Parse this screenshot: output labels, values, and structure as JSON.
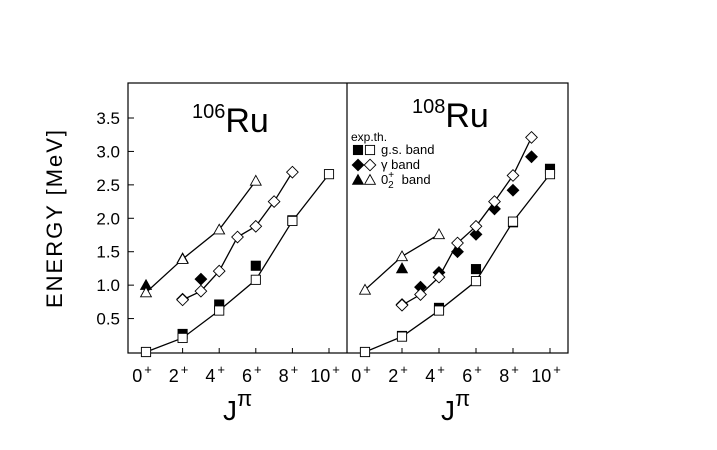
{
  "chart_data": [
    {
      "type": "scatter",
      "nucleus_mass": "106",
      "nucleus_symbol": "Ru",
      "ylabel": "ENERGY [MeV]",
      "xlabel_base": "J",
      "xlabel_sup": "π",
      "ylim": [
        0,
        3.5
      ],
      "xlim": [
        -1,
        11
      ],
      "x_ticks": [
        {
          "x": 0,
          "label": "0",
          "sup": "+"
        },
        {
          "x": 2,
          "label": "2",
          "sup": "+"
        },
        {
          "x": 4,
          "label": "4",
          "sup": "+"
        },
        {
          "x": 6,
          "label": "6",
          "sup": "+"
        },
        {
          "x": 8,
          "label": "8",
          "sup": "+"
        },
        {
          "x": 10,
          "label": "10",
          "sup": "+"
        }
      ],
      "y_ticks": [
        "0.5",
        "1.0",
        "1.5",
        "2.0",
        "2.5",
        "3.0",
        "3.5"
      ],
      "series": [
        {
          "band": "gs",
          "kind": "exp",
          "marker": "square-filled",
          "x": [
            0,
            2,
            4,
            6,
            8
          ],
          "y": [
            0.0,
            0.27,
            0.71,
            1.29,
            1.97
          ]
        },
        {
          "band": "gs",
          "kind": "th",
          "marker": "square-open",
          "line": true,
          "x": [
            0,
            2,
            4,
            6,
            8,
            10
          ],
          "y": [
            0.0,
            0.21,
            0.62,
            1.08,
            1.96,
            2.66
          ]
        },
        {
          "band": "gamma",
          "kind": "exp",
          "marker": "diamond-filled",
          "x": [
            2,
            3
          ],
          "y": [
            0.79,
            1.09
          ]
        },
        {
          "band": "gamma",
          "kind": "th",
          "marker": "diamond-open",
          "line": true,
          "x": [
            2,
            3,
            4,
            5,
            6,
            7,
            8
          ],
          "y": [
            0.78,
            0.91,
            1.21,
            1.72,
            1.88,
            2.25,
            2.69
          ]
        },
        {
          "band": "zero2",
          "kind": "exp",
          "marker": "triangle-filled",
          "x": [
            0,
            2
          ],
          "y": [
            1.0,
            1.4
          ]
        },
        {
          "band": "zero2",
          "kind": "th",
          "marker": "triangle-open",
          "line": true,
          "x": [
            0,
            2,
            4,
            6
          ],
          "y": [
            0.89,
            1.39,
            1.83,
            2.56
          ]
        }
      ]
    },
    {
      "type": "scatter",
      "nucleus_mass": "108",
      "nucleus_symbol": "Ru",
      "xlabel_base": "J",
      "xlabel_sup": "π",
      "ylim": [
        0,
        3.5
      ],
      "xlim": [
        -1,
        11
      ],
      "x_ticks": [
        {
          "x": 0,
          "label": "0",
          "sup": "+"
        },
        {
          "x": 2,
          "label": "2",
          "sup": "+"
        },
        {
          "x": 4,
          "label": "4",
          "sup": "+"
        },
        {
          "x": 6,
          "label": "6",
          "sup": "+"
        },
        {
          "x": 8,
          "label": "8",
          "sup": "+"
        },
        {
          "x": 10,
          "label": "10",
          "sup": "+"
        }
      ],
      "legend": {
        "header": "exp.th.",
        "entries": [
          {
            "band": "gs",
            "filled": "square-filled",
            "open": "square-open",
            "label": "g.s. band"
          },
          {
            "band": "gamma",
            "filled": "diamond-filled",
            "open": "diamond-open",
            "label": "γ  band"
          },
          {
            "band": "zero2",
            "filled": "triangle-filled",
            "open": "triangle-open",
            "label_base": "0",
            "label_sup": "+",
            "label_sub": "2",
            "label_rest": "band"
          }
        ]
      },
      "series": [
        {
          "band": "gs",
          "kind": "exp",
          "marker": "square-filled",
          "x": [
            0,
            2,
            4,
            6,
            8,
            10
          ],
          "y": [
            0.0,
            0.24,
            0.66,
            1.24,
            1.94,
            2.74
          ]
        },
        {
          "band": "gs",
          "kind": "th",
          "marker": "square-open",
          "line": true,
          "x": [
            0,
            2,
            4,
            6,
            8,
            10
          ],
          "y": [
            0.0,
            0.23,
            0.62,
            1.06,
            1.95,
            2.66
          ]
        },
        {
          "band": "gamma",
          "kind": "exp",
          "marker": "diamond-filled",
          "x": [
            2,
            3,
            4,
            5,
            6,
            7,
            8,
            9
          ],
          "y": [
            0.71,
            0.97,
            1.19,
            1.5,
            1.76,
            2.14,
            2.42,
            2.92
          ]
        },
        {
          "band": "gamma",
          "kind": "th",
          "marker": "diamond-open",
          "line": true,
          "x": [
            2,
            3,
            4,
            5,
            6,
            7,
            8,
            9
          ],
          "y": [
            0.7,
            0.86,
            1.12,
            1.63,
            1.88,
            2.25,
            2.64,
            3.21
          ]
        },
        {
          "band": "zero2",
          "kind": "exp",
          "marker": "triangle-filled",
          "x": [
            2
          ],
          "y": [
            1.25
          ]
        },
        {
          "band": "zero2",
          "kind": "th",
          "marker": "triangle-open",
          "line": true,
          "x": [
            0,
            2,
            4
          ],
          "y": [
            0.93,
            1.43,
            1.76
          ]
        }
      ]
    }
  ]
}
